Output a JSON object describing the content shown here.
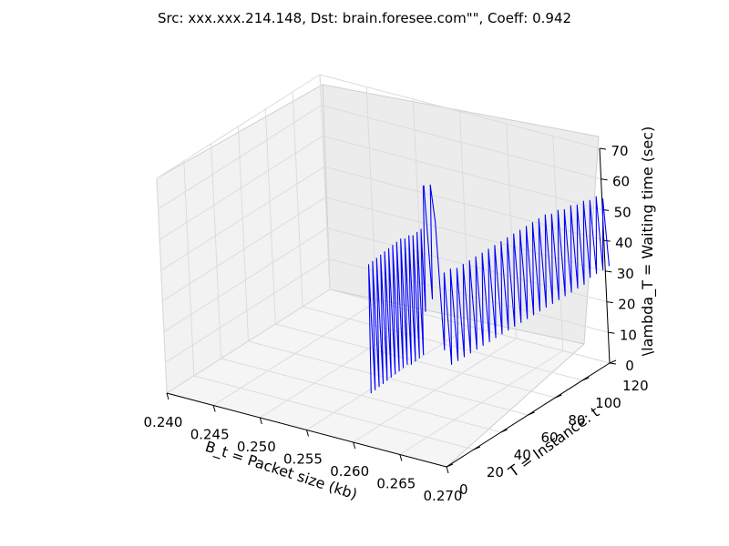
{
  "chart_data": {
    "type": "line",
    "projection": "3d",
    "title": "Src: xxx.xxx.214.148, Dst: brain.foresee.com\"\", Coeff: 0.942",
    "xlabel": "B_t = Packet size (kb)",
    "ylabel": "T = Instance: t",
    "zlabel": "\\lambda_T = Waiting time (sec)",
    "xlim": [
      0.24,
      0.27
    ],
    "ylim": [
      0,
      120
    ],
    "zlim": [
      0,
      70
    ],
    "xticks": [
      "0.240",
      "0.245",
      "0.250",
      "0.255",
      "0.260",
      "0.265",
      "0.270"
    ],
    "yticks": [
      "0",
      "20",
      "40",
      "60",
      "80",
      "100",
      "120"
    ],
    "zticks": [
      "0",
      "10",
      "20",
      "30",
      "40",
      "50",
      "60",
      "70"
    ],
    "grid": true,
    "line_color": "#0000ff",
    "series": [
      {
        "x": [
          0.2555,
          0.2558,
          0.2558,
          0.2561,
          0.2561,
          0.2564,
          0.2564,
          0.2567,
          0.2567,
          0.257,
          0.257,
          0.2573,
          0.2573,
          0.2576,
          0.2576,
          0.2579,
          0.2579,
          0.2582,
          0.2582,
          0.2585,
          0.2585,
          0.2588,
          0.2588,
          0.2591,
          0.2591,
          0.2594,
          0.2594,
          0.2597,
          0.2597,
          0.26,
          0.26,
          0.2602,
          0.2604,
          0.2606,
          0.2608,
          0.261,
          0.2612,
          0.2614,
          0.2616,
          0.2618,
          0.262,
          0.2622,
          0.2624,
          0.2626,
          0.2628,
          0.263,
          0.2632,
          0.2634,
          0.2636,
          0.2638,
          0.264,
          0.2642,
          0.2644,
          0.2646,
          0.2648,
          0.265,
          0.2652,
          0.2654,
          0.2656,
          0.2658,
          0.266,
          0.2662,
          0.2664,
          0.2666,
          0.2668,
          0.267,
          0.2672,
          0.2674,
          0.2676,
          0.2678,
          0.268,
          0.2682,
          0.2684,
          0.2686,
          0.2688,
          0.269,
          0.2692,
          0.2694,
          0.2696,
          0.2698,
          0.27,
          0.2702,
          0.2704,
          0.2706,
          0.2708,
          0.271,
          0.2712
        ],
        "y": [
          44,
          44.5,
          45,
          45.5,
          46,
          46.5,
          47,
          47.5,
          48,
          48.5,
          49,
          49.5,
          50,
          50.5,
          51,
          51.5,
          52,
          52.5,
          53,
          53.5,
          54,
          54.5,
          55,
          55.5,
          56,
          56.5,
          57,
          57.5,
          58,
          58.5,
          59,
          60,
          61,
          62,
          63,
          64,
          65,
          66,
          67,
          68,
          69,
          70,
          71,
          72,
          73,
          74,
          75,
          76,
          77,
          78,
          79,
          80,
          81,
          82,
          83,
          84,
          85,
          86,
          87,
          88,
          89,
          90,
          91,
          92,
          93,
          94,
          95,
          96,
          97,
          98,
          99,
          100,
          101,
          102,
          103,
          104,
          105,
          106,
          107,
          108,
          109,
          110,
          111,
          112,
          113,
          114,
          115
        ],
        "z": [
          0,
          42,
          1,
          43,
          2,
          44,
          3,
          45,
          4,
          46,
          5,
          47,
          6,
          48,
          7,
          49,
          8,
          50,
          9,
          50,
          9,
          51,
          10,
          51,
          11,
          52,
          12,
          53,
          26,
          67,
          67,
          30,
          67,
          55,
          13,
          38,
          8,
          39,
          9,
          39,
          10,
          40,
          11,
          41,
          12,
          42,
          13,
          43,
          14,
          44,
          15,
          45,
          16,
          46,
          17,
          47,
          18,
          48,
          19,
          49,
          20,
          50,
          21,
          51,
          22,
          52,
          23,
          53,
          24,
          53,
          25,
          54,
          26,
          54,
          27,
          55,
          28,
          55,
          29,
          56,
          31,
          56,
          32,
          57,
          33,
          56,
          34
        ]
      }
    ]
  }
}
